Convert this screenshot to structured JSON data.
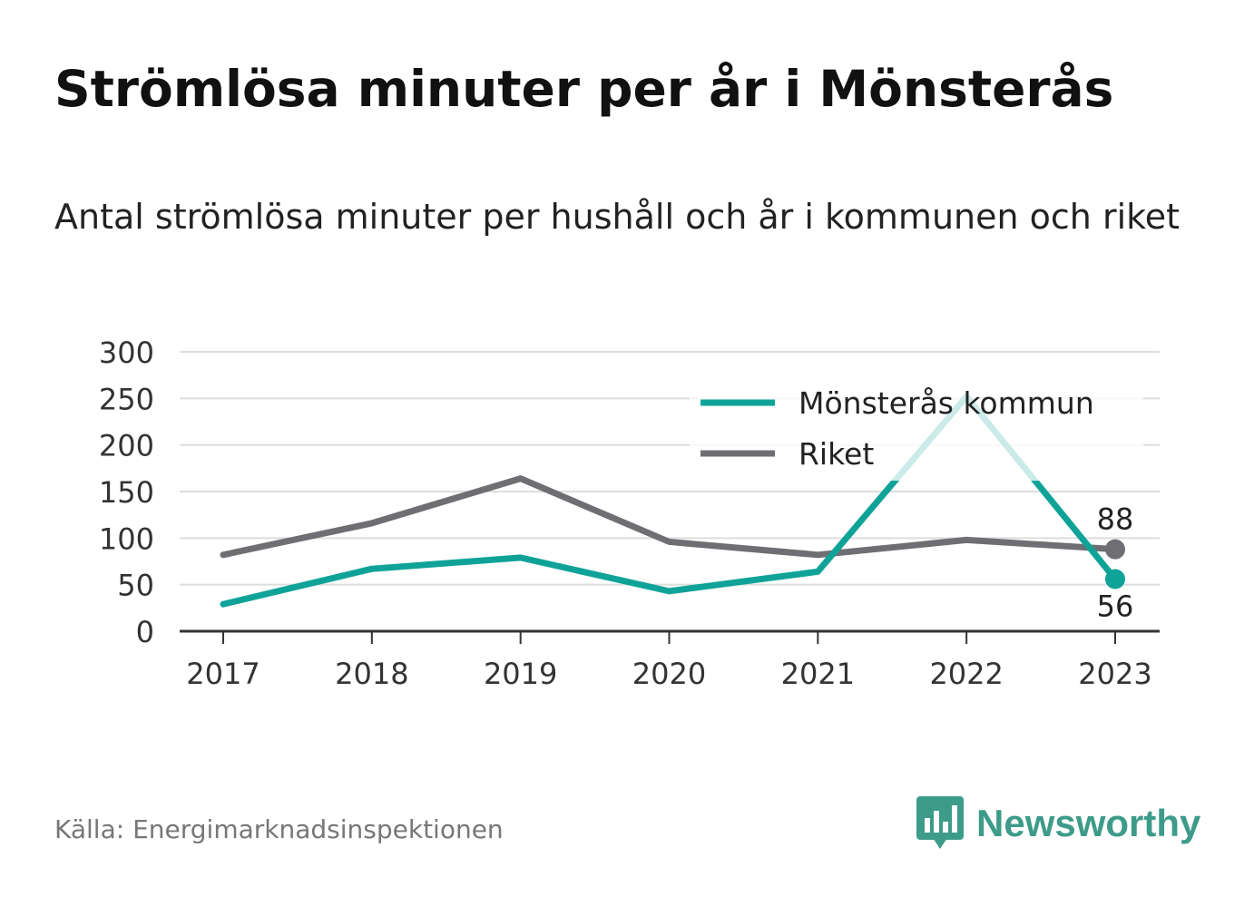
{
  "header": {
    "title": "Strömlösa minuter per år i Mönsterås",
    "subtitle": "Antal strömlösa minuter per hushåll och år i kommunen och riket"
  },
  "footer": {
    "source": "Källa: Energimarknadsinspektionen",
    "brand": "Newsworthy",
    "brand_icon": "bar-chart-speech-bubble-icon"
  },
  "colors": {
    "kommun": "#0fa398",
    "kommun_faded": "#c9ebe8",
    "riket": "#6e6e73",
    "grid": "#dddddd",
    "axis": "#333333"
  },
  "chart_data": {
    "type": "line",
    "x": [
      "2017",
      "2018",
      "2019",
      "2020",
      "2021",
      "2022",
      "2023"
    ],
    "ylim": [
      0,
      300
    ],
    "yticks": [
      "0",
      "50",
      "100",
      "150",
      "200",
      "250",
      "300"
    ],
    "grid": true,
    "legend_position": "top-right",
    "series": [
      {
        "name": "Mönsterås kommun",
        "values": [
          29,
          67,
          79,
          43,
          64,
          252,
          56
        ],
        "end_label": "56"
      },
      {
        "name": "Riket",
        "values": [
          82,
          116,
          164,
          96,
          82,
          98,
          88
        ],
        "end_label": "88"
      }
    ]
  }
}
